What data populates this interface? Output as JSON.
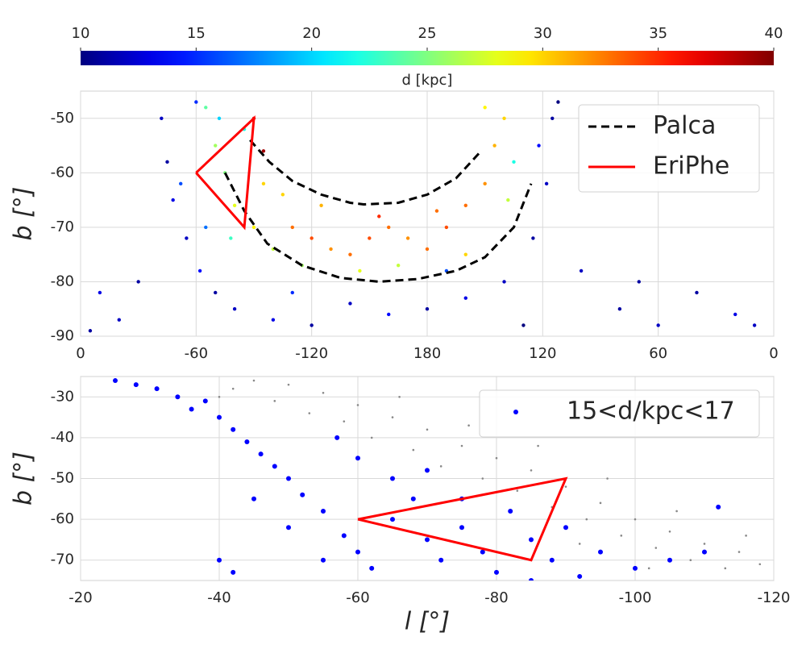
{
  "chart_data": [
    {
      "type": "scatter",
      "ylabel": "b [°]",
      "xlim": [
        360,
        0
      ],
      "ylim": [
        -90,
        -45
      ],
      "xticks": [
        {
          "value": 360,
          "label": "0"
        },
        {
          "value": 300,
          "label": "-60"
        },
        {
          "value": 240,
          "label": "-120"
        },
        180,
        120,
        60,
        0
      ],
      "yticks": [
        -90,
        -80,
        -70,
        -60,
        -50
      ],
      "grid": true,
      "legend": "upper right",
      "colorbar": {
        "label": "d [kpc]",
        "lim": [
          10,
          40
        ],
        "ticks": [
          10,
          15,
          20,
          25,
          30,
          35,
          40
        ],
        "colormap": "jet"
      },
      "points": {
        "x": [
          318,
          315,
          312,
          305,
          298,
          290,
          280,
          260,
          240,
          220,
          200,
          180,
          160,
          140,
          125,
          118,
          115,
          112,
          122,
          300,
          308,
          295,
          330,
          340,
          350,
          80,
          60,
          40,
          20,
          10,
          355,
          100,
          130,
          70,
          250,
          170,
          295,
          290,
          285,
          280,
          270,
          260,
          275,
          288,
          282,
          265,
          250,
          240,
          230,
          220,
          210,
          200,
          190,
          180,
          170,
          160,
          150,
          145,
          140,
          150,
          235,
          205,
          175,
          255,
          270,
          265,
          135,
          138,
          160,
          215,
          195,
          245
        ],
        "y": [
          -50,
          -58,
          -65,
          -72,
          -78,
          -82,
          -85,
          -87,
          -88,
          -84,
          -86,
          -85,
          -83,
          -80,
          -72,
          -62,
          -50,
          -47,
          -55,
          -47,
          -62,
          -70,
          -80,
          -87,
          -82,
          -85,
          -88,
          -82,
          -86,
          -88,
          -89,
          -78,
          -88,
          -80,
          -82,
          -78,
          -48,
          -55,
          -60,
          -66,
          -70,
          -74,
          -52,
          -50,
          -72,
          -62,
          -70,
          -72,
          -74,
          -75,
          -72,
          -70,
          -72,
          -74,
          -70,
          -66,
          -62,
          -55,
          -50,
          -48,
          -66,
          -68,
          -67,
          -64,
          -50,
          -56,
          -58,
          -65,
          -75,
          -78,
          -77,
          -77
        ],
        "d": [
          12,
          11,
          13,
          12,
          14,
          11,
          12,
          13,
          11,
          12,
          14,
          11,
          13,
          12,
          11,
          12,
          11,
          10,
          14,
          15,
          16,
          17,
          11,
          12,
          13,
          11,
          12,
          11,
          13,
          12,
          11,
          12,
          10,
          11,
          15,
          16,
          24,
          26,
          25,
          28,
          29,
          27,
          22,
          20,
          23,
          30,
          33,
          34,
          32,
          33,
          34,
          33,
          32,
          33,
          34,
          33,
          32,
          31,
          30,
          29,
          31,
          35,
          33,
          30,
          37,
          39,
          22,
          27,
          30,
          28,
          27,
          26
        ]
      },
      "series": [
        {
          "name": "Palca",
          "color": "#000000",
          "style": "dashed",
          "x": [
            285,
            275,
            263,
            245,
            225,
            205,
            185,
            165,
            150,
            135,
            126,
            null,
            272,
            262,
            250,
            235,
            220,
            213,
            195,
            180,
            165,
            152
          ],
          "y": [
            -60,
            -67,
            -73,
            -77,
            -79.3,
            -80,
            -79.5,
            -78,
            -75.5,
            -70,
            -62,
            null,
            -54,
            -58,
            -61.5,
            -64,
            -65.5,
            -65.8,
            -65.5,
            -64,
            -61,
            -56
          ]
        },
        {
          "name": "EriPhe",
          "color": "#ff0000",
          "style": "solid",
          "x": [
            300,
            270,
            275,
            300
          ],
          "y": [
            -60,
            -50,
            -70,
            -60
          ]
        }
      ]
    },
    {
      "type": "scatter",
      "xlabel": "l [°]",
      "ylabel": "b [°]",
      "xlim": [
        -20,
        -120
      ],
      "ylim": [
        -75,
        -25
      ],
      "xticks": [
        -20,
        -40,
        -60,
        -80,
        -100,
        -120
      ],
      "yticks": [
        -70,
        -60,
        -50,
        -40,
        -30
      ],
      "grid": true,
      "legend": "upper right",
      "series": [
        {
          "color": "#888888",
          "marker_size": 1.3,
          "x": [
            -45,
            -50,
            -55,
            -48,
            -60,
            -58,
            -65,
            -62,
            -70,
            -68,
            -75,
            -72,
            -80,
            -78,
            -85,
            -83,
            -90,
            -88,
            -95,
            -93,
            -100,
            -98,
            -105,
            -103,
            -110,
            -108,
            -115,
            -113,
            -118,
            -40,
            -53,
            -66,
            -76,
            -86,
            -96,
            -106,
            -116,
            -42,
            -92,
            -102
          ],
          "y": [
            -26,
            -27,
            -29,
            -31,
            -32,
            -36,
            -35,
            -40,
            -38,
            -43,
            -42,
            -47,
            -45,
            -50,
            -48,
            -53,
            -52,
            -57,
            -56,
            -60,
            -60,
            -64,
            -63,
            -67,
            -66,
            -70,
            -68,
            -72,
            -71,
            -30,
            -34,
            -30,
            -37,
            -42,
            -50,
            -58,
            -64,
            -28,
            -66,
            -72
          ]
        },
        {
          "name": "15<d/kpc<17",
          "color": "#0000ff",
          "marker_size": 3,
          "x": [
            -25,
            -28,
            -31,
            -34,
            -36,
            -38,
            -40,
            -42,
            -44,
            -46,
            -48,
            -50,
            -45,
            -52,
            -55,
            -50,
            -58,
            -60,
            -62,
            -55,
            -65,
            -68,
            -70,
            -72,
            -75,
            -78,
            -80,
            -82,
            -85,
            -88,
            -90,
            -92,
            -95,
            -100,
            -105,
            -110,
            -112,
            -60,
            -65,
            -70,
            -40,
            -42,
            -57,
            -75,
            -85
          ],
          "y": [
            -26,
            -27,
            -28,
            -30,
            -33,
            -31,
            -35,
            -38,
            -41,
            -44,
            -47,
            -50,
            -55,
            -54,
            -58,
            -62,
            -64,
            -68,
            -72,
            -70,
            -60,
            -55,
            -65,
            -70,
            -62,
            -68,
            -73,
            -58,
            -65,
            -70,
            -62,
            -74,
            -68,
            -72,
            -70,
            -68,
            -57,
            -45,
            -50,
            -48,
            -70,
            -73,
            -40,
            -55,
            -75
          ]
        },
        {
          "color": "#ff0000",
          "style": "solid",
          "x": [
            -60,
            -90,
            -85,
            -60
          ],
          "y": [
            -60,
            -50,
            -70,
            -60
          ]
        }
      ]
    }
  ]
}
